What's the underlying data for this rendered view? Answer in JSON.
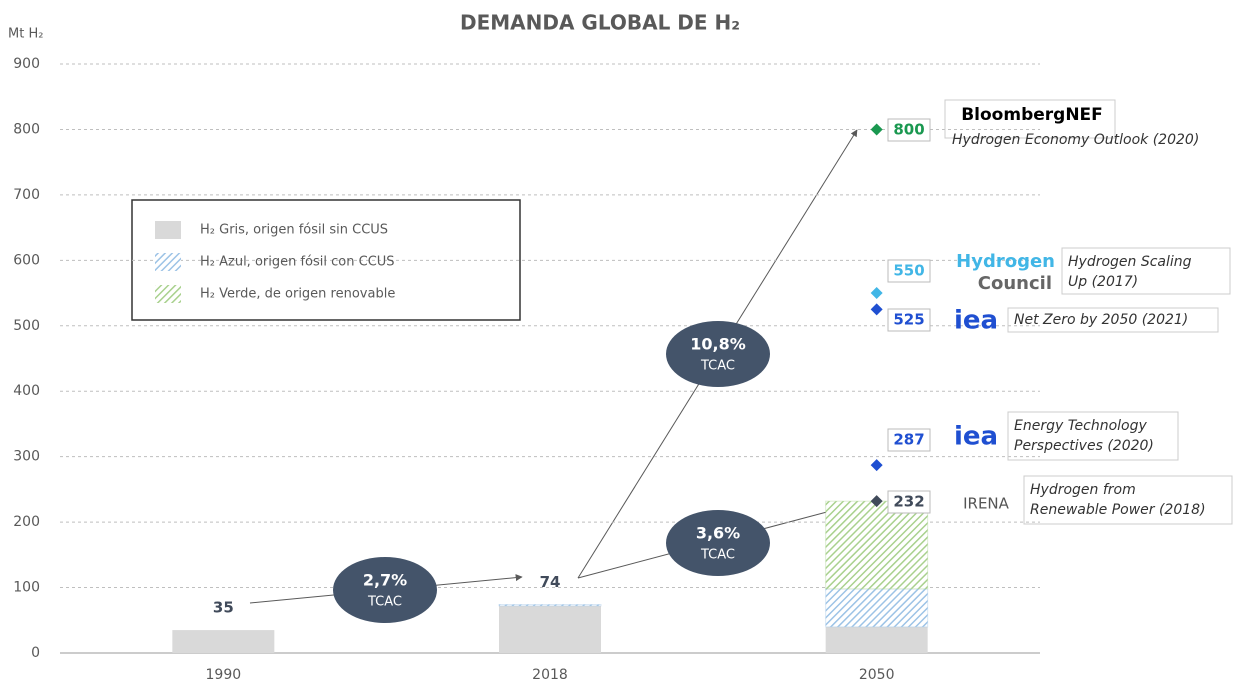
{
  "chart_data": {
    "type": "bar",
    "stacked": true,
    "title": "DEMANDA GLOBAL DE H₂",
    "y_label": "Mt H₂",
    "categories": [
      "1990",
      "2018",
      "2050"
    ],
    "series": [
      {
        "name": "H₂ Gris, origen fósil sin CCUS",
        "color": "#d9d9d9",
        "hatch": false,
        "values": [
          35,
          72,
          40
        ]
      },
      {
        "name": "H₂ Azul, origen fósil con CCUS",
        "color": "#9dc3e6",
        "hatch": true,
        "values": [
          0,
          2,
          58
        ]
      },
      {
        "name": "H₂ Verde, de origen renovable",
        "color": "#a9d18e",
        "hatch": true,
        "values": [
          0,
          0,
          134
        ]
      }
    ],
    "totals": [
      35,
      74,
      null
    ],
    "ylim": [
      0,
      900
    ],
    "yticks": [
      0,
      100,
      200,
      300,
      400,
      500,
      600,
      700,
      800,
      900
    ],
    "grid": true,
    "scenarios": [
      {
        "logo": [
          "BloombergNEF"
        ],
        "source": [
          "Hydrogen Economy Outlook (2020)"
        ],
        "value": 800,
        "color": "#1a9850"
      },
      {
        "logo": [
          "Hydrogen",
          "Council"
        ],
        "source": [
          "Hydrogen Scaling",
          "Up (2017)"
        ],
        "value": 550,
        "color": "#41b6e6"
      },
      {
        "logo": [
          "iea"
        ],
        "source": [
          "Net Zero by 2050 (2021)"
        ],
        "value": 525,
        "color": "#1f4fd1"
      },
      {
        "logo": [
          "iea"
        ],
        "source": [
          "Energy Technology",
          "Perspectives (2020)"
        ],
        "value": 287,
        "color": "#1f4fd1"
      },
      {
        "logo": [
          "IRENA"
        ],
        "source": [
          "Hydrogen from",
          "Renewable Power (2018)"
        ],
        "value": 232,
        "color": "#404a5a"
      }
    ],
    "growth": [
      {
        "rate": "2,7%",
        "label": "TCAC"
      },
      {
        "rate": "3,6%",
        "label": "TCAC"
      },
      {
        "rate": "10,8%",
        "label": "TCAC"
      }
    ]
  }
}
